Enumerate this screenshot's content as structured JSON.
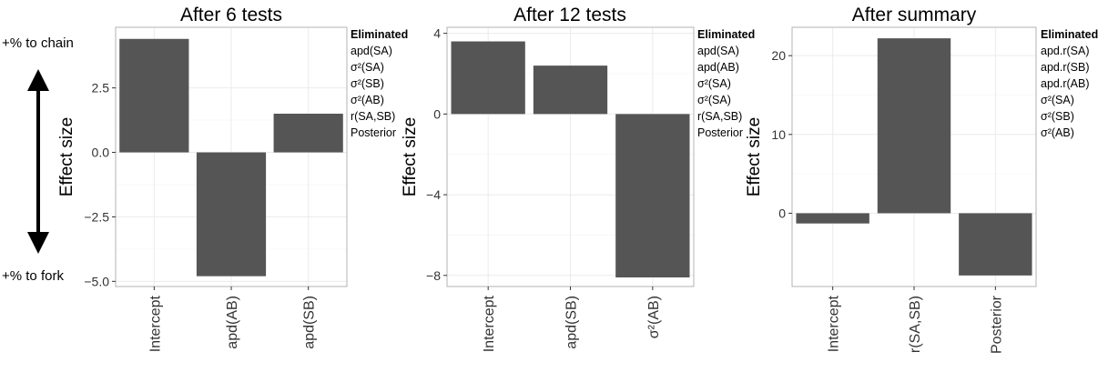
{
  "side_annotation": {
    "top_label": "+% to chain",
    "bottom_label": "+% to fork"
  },
  "bar_color": "#555555",
  "chart_data": [
    {
      "type": "bar",
      "title": "After 6 tests",
      "xlabel": "",
      "ylabel": "Effect size",
      "categories": [
        "Intercept",
        "apd(AB)",
        "apd(SB)"
      ],
      "values": [
        4.4,
        -4.8,
        1.5
      ],
      "ylim": [
        -5.2,
        4.85
      ],
      "yticks": [
        -5.0,
        -2.5,
        0.0,
        2.5
      ],
      "ytick_labels": [
        "−5.0",
        "−2.5",
        "0.0",
        "2.5"
      ],
      "grid": true,
      "eliminated_header": "Eliminated",
      "eliminated": [
        "apd(SA)",
        "σ²(SA)",
        "σ²(SB)",
        "σ²(AB)",
        "r(SA,SB)",
        "Posterior"
      ]
    },
    {
      "type": "bar",
      "title": "After 12 tests",
      "xlabel": "",
      "ylabel": "Effect size",
      "categories": [
        "Intercept",
        "apd(SB)",
        "σ²(AB)"
      ],
      "values": [
        3.6,
        2.4,
        -8.1
      ],
      "ylim": [
        -8.55,
        4.3
      ],
      "yticks": [
        -8,
        -4,
        0,
        4
      ],
      "ytick_labels": [
        "−8",
        "−4",
        "0",
        "4"
      ],
      "grid": true,
      "eliminated_header": "Eliminated",
      "eliminated": [
        "apd(SA)",
        "apd(AB)",
        "σ²(SA)",
        "σ²(SA)",
        "r(SA,SB)",
        "Posterior"
      ]
    },
    {
      "type": "bar",
      "title": "After summary",
      "xlabel": "",
      "ylabel": "Effect size",
      "categories": [
        "Intercept",
        "r(SA,SB)",
        "Posterior"
      ],
      "values": [
        -1.3,
        22.2,
        -7.9
      ],
      "ylim": [
        -9.3,
        23.6
      ],
      "yticks": [
        0,
        10,
        20
      ],
      "ytick_labels": [
        "0",
        "10",
        "20"
      ],
      "grid": true,
      "eliminated_header": "Eliminated",
      "eliminated": [
        "apd.r(SA)",
        "apd.r(SB)",
        "apd.r(AB)",
        "σ²(SA)",
        "σ²(SB)",
        "σ²(AB)"
      ]
    }
  ]
}
